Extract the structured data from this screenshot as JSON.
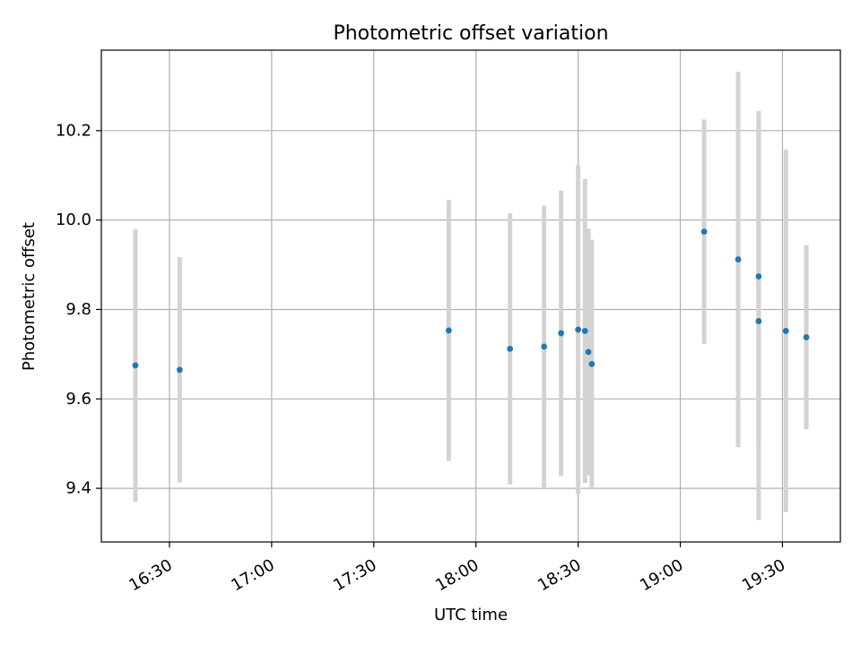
{
  "chart_data": {
    "type": "scatter",
    "title": "Photometric offset variation",
    "xlabel": "UTC time",
    "ylabel": "Photometric offset",
    "x_axis_kind": "time",
    "xlim": [
      "16:10",
      "19:47"
    ],
    "ylim": [
      9.28,
      10.38
    ],
    "grid": true,
    "x_ticks": [
      "16:30",
      "17:00",
      "17:30",
      "18:00",
      "18:30",
      "19:00",
      "19:30"
    ],
    "y_ticks": [
      9.4,
      9.6,
      9.8,
      10.0,
      10.2
    ],
    "y_tick_labels": [
      "9.4",
      "9.6",
      "9.8",
      "10.0",
      "10.2"
    ],
    "colors": {
      "points": "#1f77b4",
      "errorbars": "#d3d3d3",
      "grid": "#b0b0b0",
      "axes": "#000000"
    },
    "series": [
      {
        "points": [
          {
            "t": "16:20",
            "y": 9.675,
            "err": 0.305
          },
          {
            "t": "16:33",
            "y": 9.665,
            "err": 0.252
          },
          {
            "t": "17:52",
            "y": 9.753,
            "err": 0.292
          },
          {
            "t": "18:10",
            "y": 9.712,
            "err": 0.303
          },
          {
            "t": "18:20",
            "y": 9.717,
            "err": 0.315
          },
          {
            "t": "18:25",
            "y": 9.747,
            "err": 0.319
          },
          {
            "t": "18:30",
            "y": 9.755,
            "err": 0.368
          },
          {
            "t": "18:32",
            "y": 9.752,
            "err": 0.34
          },
          {
            "t": "18:33",
            "y": 9.705,
            "err": 0.276
          },
          {
            "t": "18:34",
            "y": 9.678,
            "err": 0.278
          },
          {
            "t": "19:07",
            "y": 9.974,
            "err": 0.251
          },
          {
            "t": "19:17",
            "y": 9.912,
            "err": 0.42
          },
          {
            "t": "19:23",
            "y": 9.874,
            "err": 0.37
          },
          {
            "t": "19:23",
            "y": 9.774,
            "err": 0.445
          },
          {
            "t": "19:31",
            "y": 9.752,
            "err": 0.405
          },
          {
            "t": "19:37",
            "y": 9.738,
            "err": 0.206
          }
        ]
      }
    ]
  }
}
